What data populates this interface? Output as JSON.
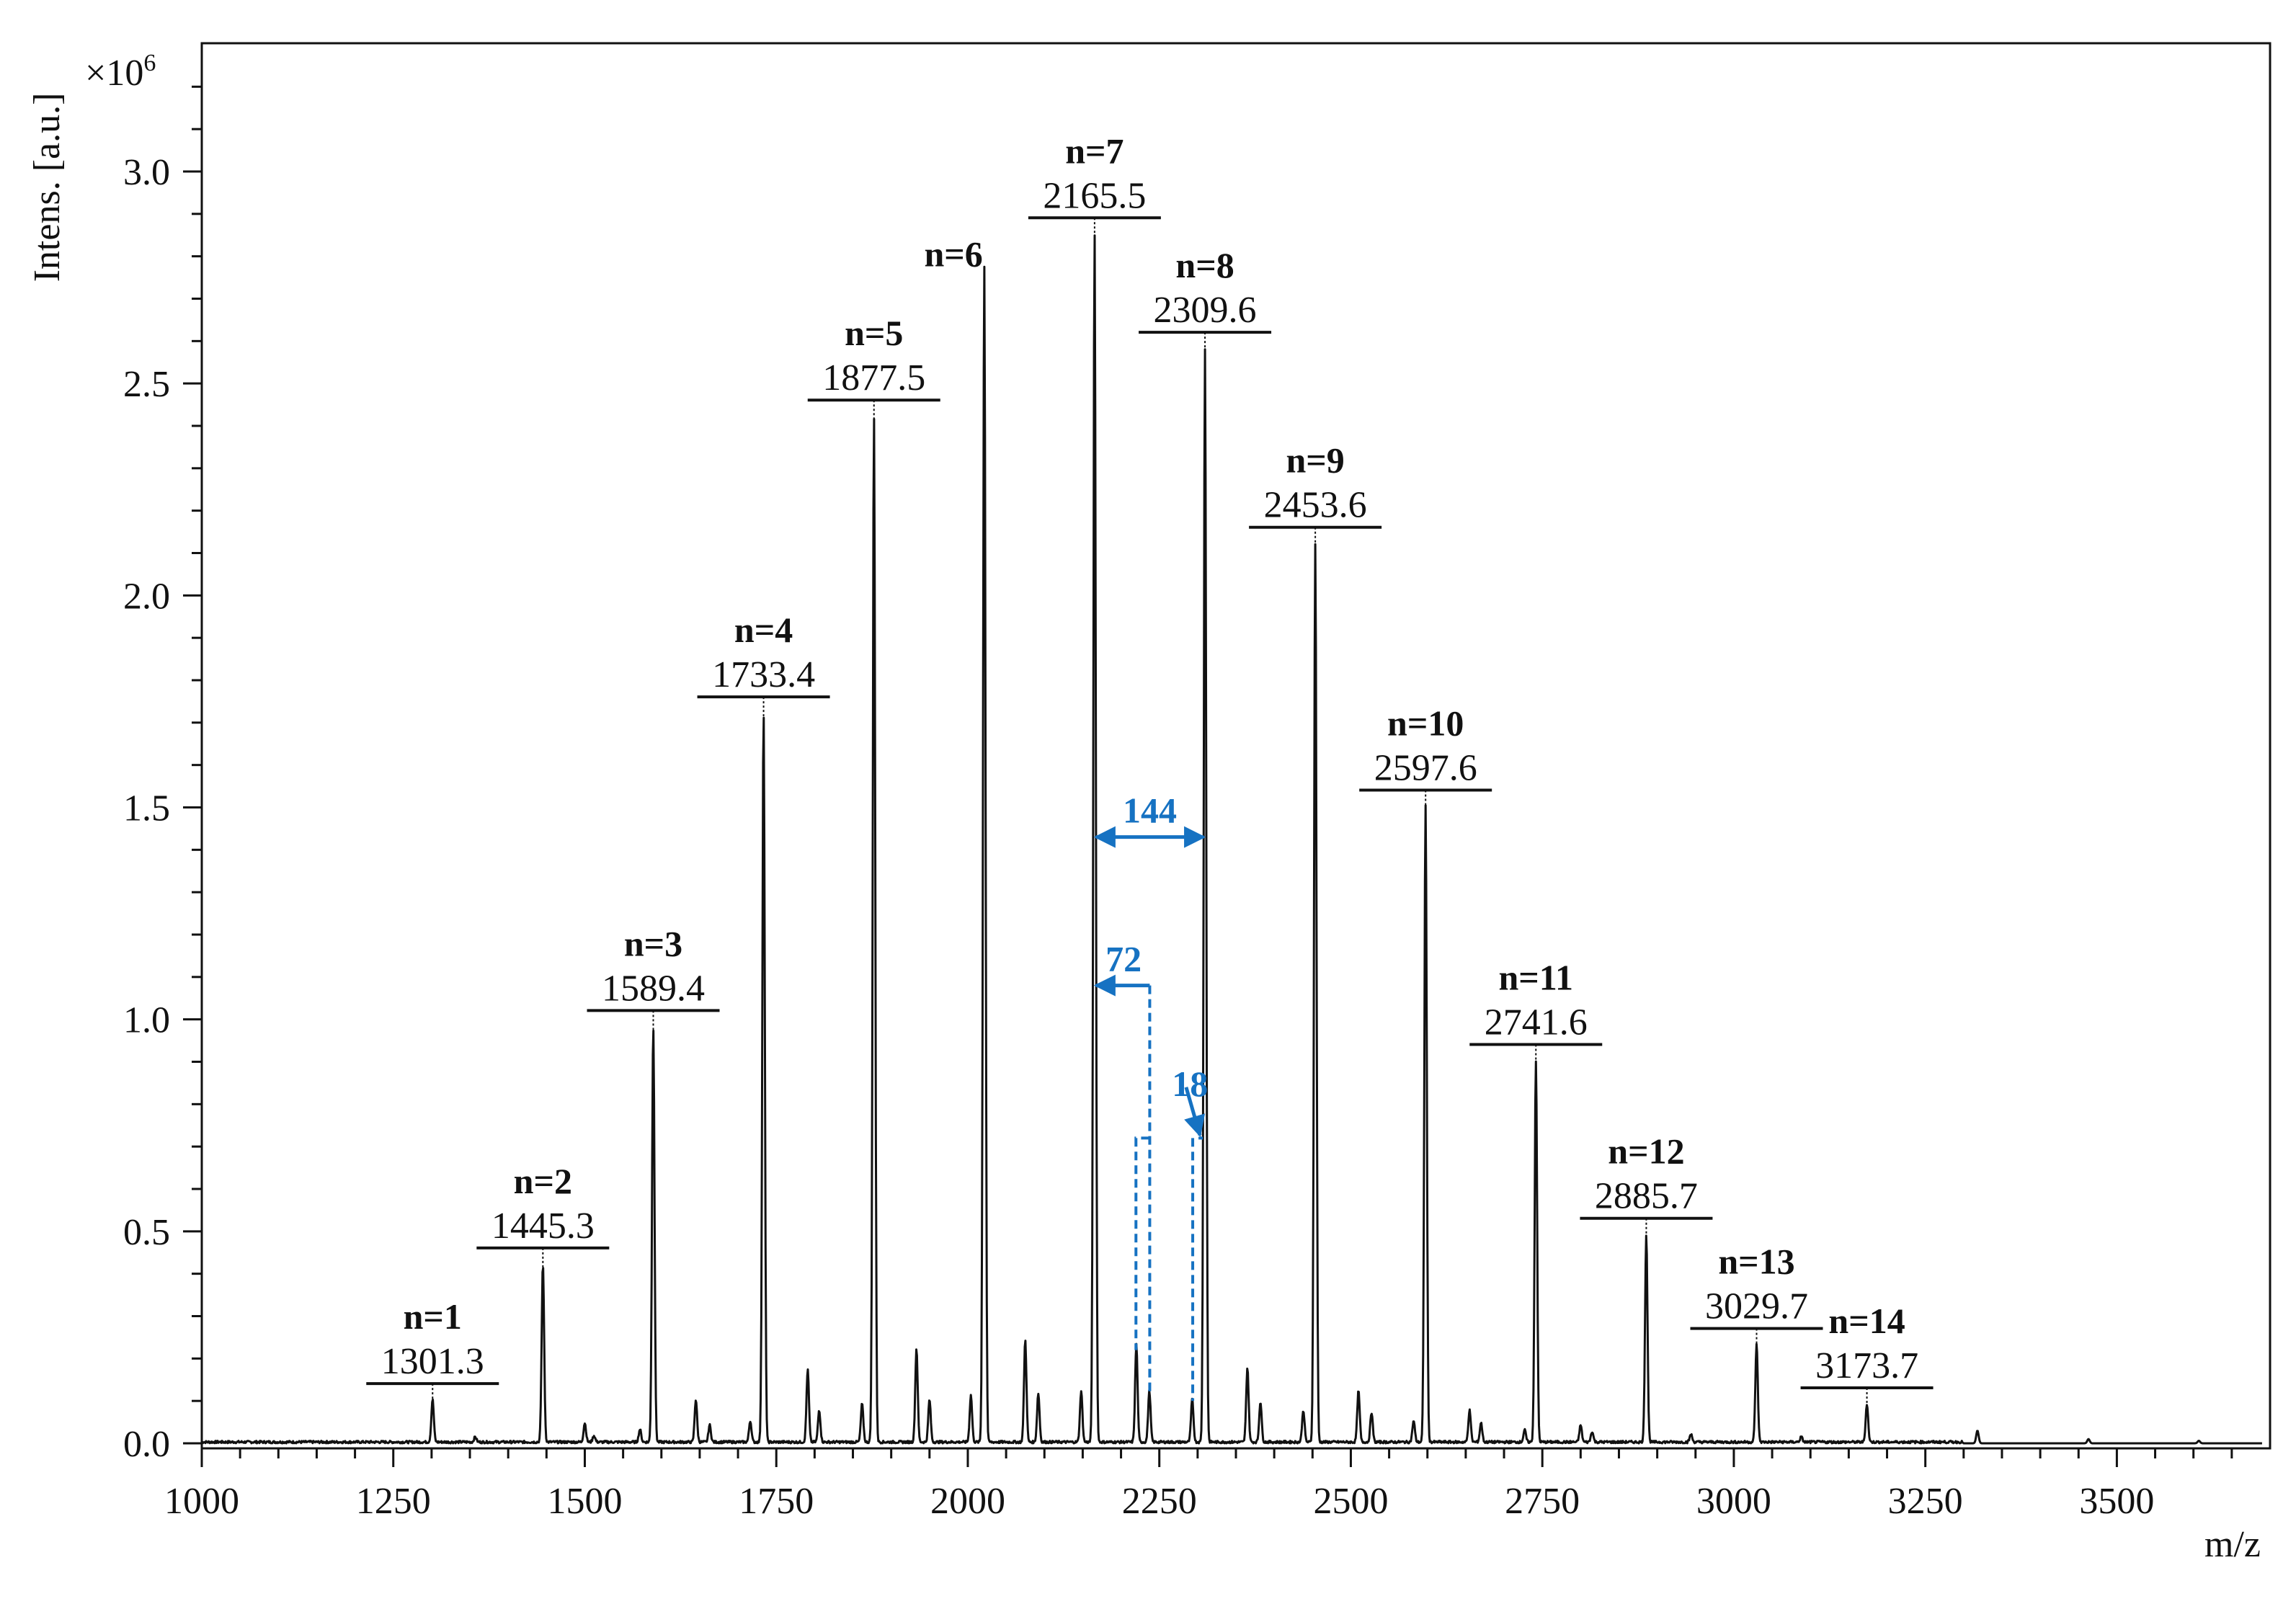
{
  "chart_data": {
    "type": "line",
    "title": "",
    "xlabel": "m/z",
    "ylabel": "Intens. [a.u.]",
    "y_multiplier": "×10",
    "y_multiplier_exp": "6",
    "xlim": [
      1000,
      3700
    ],
    "ylim": [
      0,
      3.3
    ],
    "x_ticks": [
      "1000",
      "1250",
      "1500",
      "1750",
      "2000",
      "2250",
      "2500",
      "2750",
      "3000",
      "3250",
      "3500"
    ],
    "y_ticks": [
      "0.0",
      "0.5",
      "1.0",
      "1.5",
      "2.0",
      "2.5",
      "3.0"
    ],
    "peaks": [
      {
        "label": "n=1",
        "mz": 1301.3,
        "mz_text": "1301.3",
        "intensity": 0.1
      },
      {
        "label": "n=2",
        "mz": 1445.3,
        "mz_text": "1445.3",
        "intensity": 0.42
      },
      {
        "label": "n=3",
        "mz": 1589.4,
        "mz_text": "1589.4",
        "intensity": 0.98
      },
      {
        "label": "n=4",
        "mz": 1733.4,
        "mz_text": "1733.4",
        "intensity": 1.72
      },
      {
        "label": "n=5",
        "mz": 1877.5,
        "mz_text": "1877.5",
        "intensity": 2.42
      },
      {
        "label": "n=6",
        "mz": 2021.5,
        "mz_text": "",
        "intensity": 2.78
      },
      {
        "label": "n=7",
        "mz": 2165.5,
        "mz_text": "2165.5",
        "intensity": 2.85
      },
      {
        "label": "n=8",
        "mz": 2309.6,
        "mz_text": "2309.6",
        "intensity": 2.58
      },
      {
        "label": "n=9",
        "mz": 2453.6,
        "mz_text": "2453.6",
        "intensity": 2.12
      },
      {
        "label": "n=10",
        "mz": 2597.6,
        "mz_text": "2597.6",
        "intensity": 1.5
      },
      {
        "label": "n=11",
        "mz": 2741.6,
        "mz_text": "2741.6",
        "intensity": 0.9
      },
      {
        "label": "n=12",
        "mz": 2885.7,
        "mz_text": "2885.7",
        "intensity": 0.49
      },
      {
        "label": "n=13",
        "mz": 3029.7,
        "mz_text": "3029.7",
        "intensity": 0.23
      },
      {
        "label": "n=14",
        "mz": 3173.7,
        "mz_text": "3173.7",
        "intensity": 0.09
      }
    ],
    "minor_peaks": [
      [
        1357,
        0.012
      ],
      [
        1500,
        0.045
      ],
      [
        1512,
        0.015
      ],
      [
        1572,
        0.03
      ],
      [
        1645,
        0.1
      ],
      [
        1663,
        0.04
      ],
      [
        1716,
        0.05
      ],
      [
        1791,
        0.17
      ],
      [
        1806,
        0.075
      ],
      [
        1862,
        0.09
      ],
      [
        1933,
        0.22
      ],
      [
        1950,
        0.1
      ],
      [
        2004,
        0.11
      ],
      [
        2075,
        0.24
      ],
      [
        2092,
        0.115
      ],
      [
        2148,
        0.12
      ],
      [
        2220,
        0.23
      ],
      [
        2237,
        0.12
      ],
      [
        2293,
        0.1
      ],
      [
        2365,
        0.175
      ],
      [
        2382,
        0.095
      ],
      [
        2438,
        0.075
      ],
      [
        2510,
        0.12
      ],
      [
        2527,
        0.07
      ],
      [
        2582,
        0.05
      ],
      [
        2655,
        0.075
      ],
      [
        2670,
        0.045
      ],
      [
        2727,
        0.028
      ],
      [
        2800,
        0.04
      ],
      [
        2815,
        0.025
      ],
      [
        2944,
        0.018
      ],
      [
        3088,
        0.012
      ],
      [
        3318,
        0.03
      ],
      [
        3463,
        0.01
      ],
      [
        3607,
        0.006
      ]
    ],
    "annotations": [
      {
        "text": "144",
        "from_mz": 2165.5,
        "to_mz": 2309.6,
        "y": 1.43
      },
      {
        "text": "72",
        "from_mz": 2165.5,
        "to_mz": 2237.5,
        "y": 1.08
      },
      {
        "text": "18",
        "mz": 2219.5,
        "to_mz": 2293.6,
        "y": 0.72
      }
    ]
  }
}
